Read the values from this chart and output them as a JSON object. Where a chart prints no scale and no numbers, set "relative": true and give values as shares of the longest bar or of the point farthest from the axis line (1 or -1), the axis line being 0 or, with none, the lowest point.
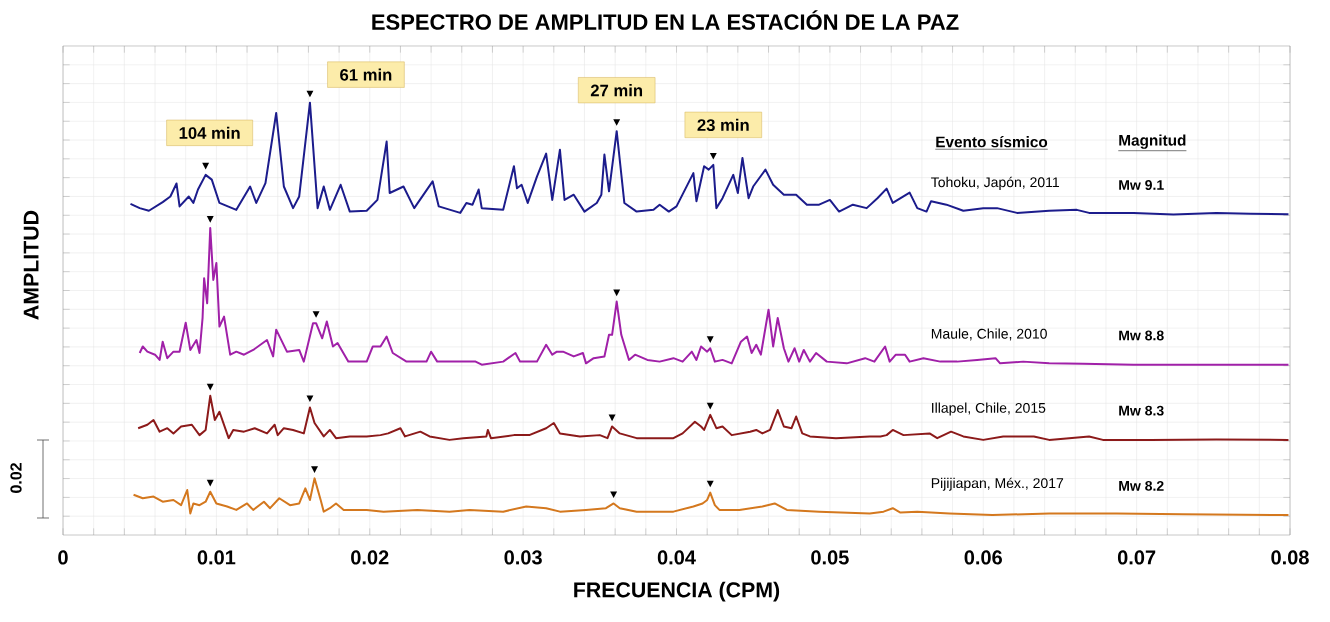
{
  "chart_data": {
    "type": "line",
    "title": "ESPECTRO DE AMPLITUD EN LA ESTACIÓN DE LA PAZ",
    "xlabel": "FRECUENCIA (CPM)",
    "ylabel": "AMPLITUD",
    "relative": true,
    "grid": true,
    "marker": "none",
    "xlim": [
      0,
      0.08
    ],
    "xticks": [
      0,
      0.01,
      0.02,
      0.03,
      0.04,
      0.05,
      0.06,
      0.07,
      0.08
    ],
    "series": [
      {
        "name": "Tohoku, Japón, 2011",
        "color": "#1c1c8c",
        "x": [
          0.0044,
          0.005,
          0.0056,
          0.0065,
          0.007,
          0.0074,
          0.0076,
          0.0082,
          0.0085,
          0.0088,
          0.0093,
          0.0097,
          0.0102,
          0.0113,
          0.0122,
          0.0126,
          0.0132,
          0.0139,
          0.0144,
          0.015,
          0.0154,
          0.0161,
          0.0166,
          0.017,
          0.0174,
          0.0181,
          0.0187,
          0.0198,
          0.0205,
          0.0211,
          0.0213,
          0.0222,
          0.0229,
          0.0241,
          0.0245,
          0.0259,
          0.0263,
          0.0267,
          0.0271,
          0.0273,
          0.0287,
          0.0294,
          0.0296,
          0.0299,
          0.0303,
          0.0309,
          0.0315,
          0.0319,
          0.0324,
          0.0327,
          0.0333,
          0.034,
          0.0348,
          0.0351,
          0.0353,
          0.0356,
          0.0361,
          0.0366,
          0.0374,
          0.0385,
          0.0389,
          0.0395,
          0.04,
          0.0411,
          0.0413,
          0.0418,
          0.0421,
          0.0424,
          0.0426,
          0.043,
          0.0437,
          0.044,
          0.0443,
          0.0447,
          0.045,
          0.0458,
          0.0463,
          0.047,
          0.0478,
          0.0485,
          0.0493,
          0.05,
          0.0506,
          0.0515,
          0.0524,
          0.0531,
          0.0537,
          0.0541,
          0.0552,
          0.0557,
          0.0563,
          0.0566,
          0.0576,
          0.0587,
          0.06,
          0.0609,
          0.0622,
          0.0643,
          0.0661,
          0.0669,
          0.0698,
          0.0724,
          0.0752,
          0.0774,
          0.0799
        ],
        "values": [
          0.766,
          0.756,
          0.75,
          0.77,
          0.783,
          0.813,
          0.76,
          0.783,
          0.768,
          0.799,
          0.833,
          0.822,
          0.768,
          0.752,
          0.806,
          0.768,
          0.814,
          0.976,
          0.806,
          0.756,
          0.783,
          1,
          0.756,
          0.806,
          0.752,
          0.81,
          0.748,
          0.75,
          0.775,
          0.91,
          0.791,
          0.806,
          0.756,
          0.818,
          0.76,
          0.745,
          0.768,
          0.764,
          0.799,
          0.756,
          0.752,
          0.853,
          0.802,
          0.81,
          0.768,
          0.829,
          0.882,
          0.775,
          0.891,
          0.775,
          0.787,
          0.748,
          0.768,
          0.787,
          0.88,
          0.795,
          0.934,
          0.768,
          0.748,
          0.752,
          0.764,
          0.748,
          0.76,
          0.837,
          0.772,
          0.853,
          0.845,
          0.856,
          0.756,
          0.779,
          0.833,
          0.791,
          0.872,
          0.779,
          0.806,
          0.845,
          0.81,
          0.787,
          0.787,
          0.764,
          0.764,
          0.775,
          0.748,
          0.764,
          0.756,
          0.779,
          0.801,
          0.768,
          0.792,
          0.756,
          0.748,
          0.772,
          0.764,
          0.75,
          0.756,
          0.756,
          0.745,
          0.75,
          0.752,
          0.745,
          0.745,
          0.741,
          0.745,
          0.743,
          0.742
        ]
      },
      {
        "name": "Maule, Chile, 2010",
        "color": "#a020a8",
        "x": [
          0.005,
          0.0052,
          0.0055,
          0.006,
          0.0063,
          0.0065,
          0.0068,
          0.0072,
          0.0076,
          0.008,
          0.0083,
          0.0087,
          0.0089,
          0.0091,
          0.0092,
          0.0094,
          0.0096,
          0.0098,
          0.01,
          0.0102,
          0.0105,
          0.0109,
          0.0113,
          0.0118,
          0.0124,
          0.0133,
          0.0137,
          0.0139,
          0.0146,
          0.0154,
          0.0157,
          0.0163,
          0.0165,
          0.0169,
          0.0172,
          0.0176,
          0.0179,
          0.0186,
          0.0198,
          0.0202,
          0.0207,
          0.0211,
          0.0215,
          0.0224,
          0.0237,
          0.024,
          0.0244,
          0.0259,
          0.0269,
          0.0273,
          0.0287,
          0.0295,
          0.0298,
          0.0309,
          0.0315,
          0.0319,
          0.0322,
          0.0326,
          0.0333,
          0.0339,
          0.0341,
          0.0346,
          0.0353,
          0.0356,
          0.0358,
          0.0361,
          0.0364,
          0.0369,
          0.0373,
          0.0381,
          0.0389,
          0.0398,
          0.0404,
          0.041,
          0.0413,
          0.0416,
          0.042,
          0.0422,
          0.0425,
          0.043,
          0.0436,
          0.0442,
          0.0446,
          0.0449,
          0.0452,
          0.0455,
          0.046,
          0.0463,
          0.0466,
          0.047,
          0.0473,
          0.0477,
          0.048,
          0.0483,
          0.0487,
          0.0491,
          0.0498,
          0.0511,
          0.0523,
          0.0529,
          0.0536,
          0.0539,
          0.0543,
          0.0549,
          0.0552,
          0.0561,
          0.0572,
          0.0583,
          0.0596,
          0.0608,
          0.0611,
          0.0626,
          0.0643,
          0.0665,
          0.0698,
          0.073,
          0.0763,
          0.0799
        ],
        "values": [
          0.421,
          0.436,
          0.424,
          0.417,
          0.405,
          0.447,
          0.409,
          0.424,
          0.424,
          0.491,
          0.428,
          0.451,
          0.421,
          0.502,
          0.594,
          0.536,
          0.71,
          0.59,
          0.629,
          0.482,
          0.505,
          0.417,
          0.424,
          0.417,
          0.428,
          0.451,
          0.413,
          0.475,
          0.424,
          0.428,
          0.401,
          0.49,
          0.49,
          0.455,
          0.494,
          0.436,
          0.444,
          0.401,
          0.401,
          0.436,
          0.436,
          0.459,
          0.421,
          0.401,
          0.401,
          0.424,
          0.401,
          0.401,
          0.401,
          0.394,
          0.401,
          0.421,
          0.401,
          0.401,
          0.44,
          0.417,
          0.424,
          0.424,
          0.413,
          0.421,
          0.397,
          0.409,
          0.413,
          0.463,
          0.463,
          0.54,
          0.463,
          0.405,
          0.417,
          0.405,
          0.401,
          0.409,
          0.401,
          0.424,
          0.405,
          0.436,
          0.424,
          0.432,
          0.401,
          0.405,
          0.397,
          0.447,
          0.459,
          0.421,
          0.44,
          0.417,
          0.521,
          0.436,
          0.502,
          0.432,
          0.401,
          0.432,
          0.401,
          0.428,
          0.401,
          0.421,
          0.401,
          0.397,
          0.409,
          0.401,
          0.436,
          0.401,
          0.417,
          0.417,
          0.401,
          0.409,
          0.401,
          0.401,
          0.405,
          0.409,
          0.397,
          0.401,
          0.397,
          0.396,
          0.394,
          0.394,
          0.394,
          0.394
        ]
      },
      {
        "name": "Illapel, Chile, 2015",
        "color": "#8c1a1a",
        "x": [
          0.0049,
          0.0055,
          0.0059,
          0.0063,
          0.0068,
          0.0072,
          0.0077,
          0.0084,
          0.0089,
          0.0093,
          0.0096,
          0.0099,
          0.0102,
          0.0108,
          0.0111,
          0.0118,
          0.0125,
          0.0133,
          0.0138,
          0.014,
          0.0144,
          0.015,
          0.0157,
          0.0161,
          0.0164,
          0.017,
          0.0174,
          0.0178,
          0.0187,
          0.0198,
          0.0207,
          0.0212,
          0.022,
          0.0223,
          0.0233,
          0.0239,
          0.0252,
          0.0261,
          0.0276,
          0.0277,
          0.0279,
          0.0294,
          0.0304,
          0.0315,
          0.032,
          0.0324,
          0.0337,
          0.035,
          0.0355,
          0.0358,
          0.0363,
          0.0374,
          0.0398,
          0.0404,
          0.0412,
          0.0416,
          0.0418,
          0.0422,
          0.0426,
          0.043,
          0.0436,
          0.0448,
          0.0452,
          0.0456,
          0.0461,
          0.0466,
          0.047,
          0.0475,
          0.0478,
          0.0482,
          0.0487,
          0.0504,
          0.0526,
          0.0533,
          0.0537,
          0.0541,
          0.0548,
          0.0565,
          0.057,
          0.0579,
          0.0587,
          0.06,
          0.0613,
          0.0633,
          0.0643,
          0.0669,
          0.0678,
          0.0709,
          0.0752,
          0.0799
        ],
        "values": [
          0.247,
          0.255,
          0.266,
          0.239,
          0.247,
          0.235,
          0.251,
          0.255,
          0.231,
          0.243,
          0.322,
          0.266,
          0.285,
          0.224,
          0.243,
          0.239,
          0.247,
          0.235,
          0.255,
          0.231,
          0.247,
          0.243,
          0.235,
          0.295,
          0.259,
          0.228,
          0.243,
          0.224,
          0.228,
          0.228,
          0.231,
          0.235,
          0.247,
          0.228,
          0.239,
          0.228,
          0.22,
          0.224,
          0.228,
          0.243,
          0.224,
          0.231,
          0.231,
          0.247,
          0.259,
          0.235,
          0.228,
          0.231,
          0.224,
          0.251,
          0.235,
          0.224,
          0.224,
          0.235,
          0.262,
          0.251,
          0.243,
          0.278,
          0.247,
          0.251,
          0.231,
          0.239,
          0.243,
          0.235,
          0.243,
          0.289,
          0.251,
          0.247,
          0.274,
          0.235,
          0.228,
          0.224,
          0.228,
          0.228,
          0.231,
          0.243,
          0.231,
          0.235,
          0.224,
          0.239,
          0.228,
          0.22,
          0.228,
          0.228,
          0.22,
          0.228,
          0.22,
          0.22,
          0.221,
          0.22
        ]
      },
      {
        "name": "Pijijiapan, Méx., 2017",
        "color": "#d4781e",
        "x": [
          0.0046,
          0.0052,
          0.0059,
          0.0065,
          0.0072,
          0.0077,
          0.0081,
          0.0083,
          0.0085,
          0.0089,
          0.0093,
          0.0096,
          0.01,
          0.0107,
          0.0113,
          0.012,
          0.0124,
          0.0131,
          0.0135,
          0.0141,
          0.0148,
          0.0154,
          0.0158,
          0.0161,
          0.0164,
          0.0168,
          0.017,
          0.0174,
          0.0178,
          0.0183,
          0.0198,
          0.0209,
          0.0231,
          0.0252,
          0.0265,
          0.0287,
          0.0302,
          0.0315,
          0.0324,
          0.0341,
          0.0354,
          0.0359,
          0.0363,
          0.0374,
          0.0398,
          0.0411,
          0.0417,
          0.042,
          0.0422,
          0.0425,
          0.0428,
          0.0441,
          0.0456,
          0.0464,
          0.0472,
          0.0493,
          0.0526,
          0.0535,
          0.0541,
          0.0546,
          0.0557,
          0.0578,
          0.0606,
          0.0643,
          0.0687,
          0.073,
          0.0799
        ],
        "values": [
          0.093,
          0.085,
          0.089,
          0.077,
          0.081,
          0.069,
          0.104,
          0.05,
          0.073,
          0.069,
          0.077,
          0.1,
          0.073,
          0.066,
          0.058,
          0.073,
          0.058,
          0.077,
          0.062,
          0.085,
          0.069,
          0.073,
          0.108,
          0.081,
          0.131,
          0.081,
          0.054,
          0.062,
          0.073,
          0.058,
          0.058,
          0.054,
          0.058,
          0.054,
          0.058,
          0.054,
          0.066,
          0.062,
          0.054,
          0.058,
          0.062,
          0.073,
          0.062,
          0.054,
          0.054,
          0.066,
          0.073,
          0.081,
          0.098,
          0.069,
          0.058,
          0.058,
          0.066,
          0.073,
          0.058,
          0.054,
          0.05,
          0.054,
          0.062,
          0.052,
          0.054,
          0.05,
          0.046,
          0.05,
          0.05,
          0.048,
          0.046
        ]
      }
    ],
    "annotations": [
      {
        "text": "104 min",
        "x": 0.0093,
        "y": 0.833
      },
      {
        "text": "61 min",
        "x": 0.0161,
        "y": 1
      },
      {
        "text": "27 min",
        "x": 0.0361,
        "y": 0.934
      },
      {
        "text": "23 min",
        "x": 0.0424,
        "y": 0.856
      },
      "0.02",
      "Evento sísmico",
      "Magnitud",
      "Mw 9.1",
      "Mw 8.8",
      "Mw 8.3",
      "Mw 8.2"
    ]
  }
}
